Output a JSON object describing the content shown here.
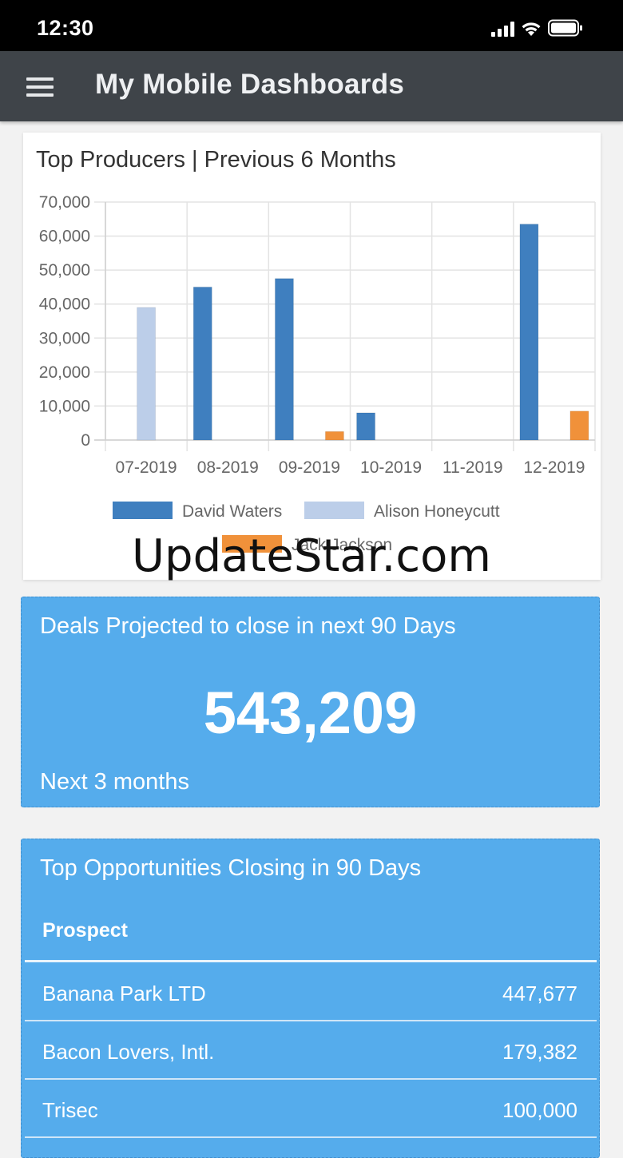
{
  "status": {
    "time": "12:30"
  },
  "header": {
    "title": "My Mobile Dashboards",
    "menu_icon": "hamburger-menu-icon"
  },
  "top_producers": {
    "title": "Top Producers | Previous 6 Months",
    "chart_data": {
      "type": "bar",
      "title": "Top Producers | Previous 6 Months",
      "categories": [
        "07-2019",
        "08-2019",
        "09-2019",
        "10-2019",
        "11-2019",
        "12-2019"
      ],
      "series": [
        {
          "name": "David Waters",
          "color": "#3f7fbf",
          "values": [
            0,
            45000,
            47500,
            8000,
            0,
            63500
          ]
        },
        {
          "name": "Alison Honeycutt",
          "color": "#bccee9",
          "values": [
            39000,
            0,
            0,
            0,
            0,
            0
          ]
        },
        {
          "name": "Jack Jackson",
          "color": "#f0913a",
          "values": [
            0,
            0,
            2500,
            0,
            0,
            8500
          ]
        }
      ],
      "ylim": [
        0,
        70000
      ],
      "yticks": [
        "0",
        "10,000",
        "20,000",
        "30,000",
        "40,000",
        "50,000",
        "60,000",
        "70,000"
      ],
      "grid": true,
      "legend": "bottom"
    }
  },
  "watermark": "UpdateStar.com",
  "deals": {
    "title": "Deals Projected to close in next 90 Days",
    "value": "543,209",
    "subtitle": "Next 3 months"
  },
  "opportunities": {
    "title": "Top Opportunities Closing in 90 Days",
    "column_header": "Prospect",
    "rows": [
      {
        "name": "Banana Park LTD",
        "amount": "447,677"
      },
      {
        "name": "Bacon Lovers, Intl.",
        "amount": "179,382"
      },
      {
        "name": "Trisec",
        "amount": "100,000"
      }
    ]
  }
}
